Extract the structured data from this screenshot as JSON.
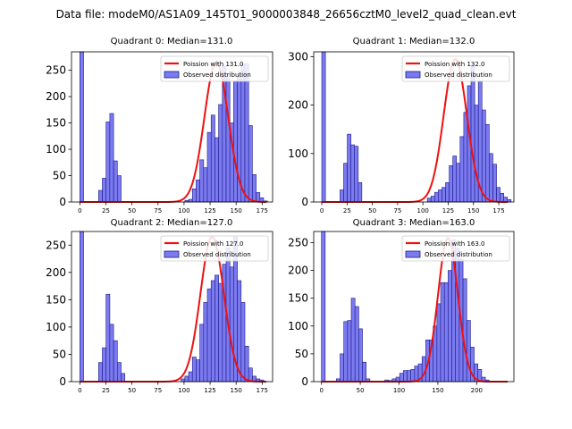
{
  "suptitle": "Data file: modeM0/AS1A09_145T01_9000003848_26656cztM0_level2_quad_clean.evt",
  "colors": {
    "bar_fill": "#7b7bef",
    "bar_edge": "#1a1a8c",
    "curve": "#ee1111",
    "axes": "#000000"
  },
  "chart_data": [
    {
      "type": "bar",
      "title": "Quadrant 0: Median=131.0",
      "legend": [
        "Poission with 131.0",
        "Observed distribution"
      ],
      "legend_loc": "upper right",
      "xlim": [
        -8,
        185
      ],
      "ylim": [
        0,
        285
      ],
      "xticks": [
        0,
        25,
        50,
        75,
        100,
        125,
        150,
        175
      ],
      "yticks": [
        0,
        50,
        100,
        150,
        200,
        250
      ],
      "bin_start": 0,
      "bin_width": 3.6,
      "values": [
        285,
        0,
        0,
        0,
        0,
        22,
        45,
        152,
        168,
        78,
        50,
        0,
        0,
        0,
        0,
        0,
        0,
        0,
        0,
        0,
        0,
        0,
        0,
        0,
        0,
        0,
        0,
        0,
        3,
        5,
        25,
        42,
        80,
        65,
        132,
        165,
        122,
        185,
        258,
        235,
        150,
        230,
        240,
        262,
        262,
        145,
        52,
        18,
        8,
        2,
        0
      ],
      "mu": 131.0,
      "peak": 265
    },
    {
      "type": "bar",
      "title": "Quadrant 1: Median=132.0",
      "legend": [
        "Poission with 132.0",
        "Observed distribution"
      ],
      "legend_loc": "upper right",
      "xlim": [
        -8,
        190
      ],
      "ylim": [
        0,
        310
      ],
      "xticks": [
        0,
        25,
        50,
        75,
        100,
        125,
        150,
        175
      ],
      "yticks": [
        0,
        100,
        200,
        300
      ],
      "bin_start": 0,
      "bin_width": 3.6,
      "values": [
        310,
        0,
        0,
        0,
        0,
        25,
        80,
        140,
        118,
        115,
        40,
        0,
        0,
        0,
        0,
        0,
        0,
        0,
        0,
        0,
        0,
        0,
        0,
        0,
        0,
        0,
        0,
        0,
        0,
        8,
        12,
        20,
        25,
        30,
        40,
        75,
        95,
        80,
        135,
        185,
        240,
        280,
        200,
        250,
        190,
        160,
        100,
        78,
        30,
        18,
        10,
        5,
        0
      ],
      "mu": 132.0,
      "peak": 295
    },
    {
      "type": "bar",
      "title": "Quadrant 2: Median=127.0",
      "legend": [
        "Poission with 127.0",
        "Observed distribution"
      ],
      "legend_loc": "upper right",
      "xlim": [
        -8,
        185
      ],
      "ylim": [
        0,
        275
      ],
      "xticks": [
        0,
        25,
        50,
        75,
        100,
        125,
        150,
        175
      ],
      "yticks": [
        0,
        50,
        100,
        150,
        200,
        250
      ],
      "bin_start": 0,
      "bin_width": 3.6,
      "values": [
        275,
        0,
        0,
        0,
        0,
        35,
        62,
        160,
        105,
        75,
        35,
        15,
        0,
        0,
        0,
        0,
        0,
        0,
        0,
        0,
        0,
        0,
        0,
        0,
        0,
        0,
        0,
        5,
        10,
        18,
        45,
        40,
        105,
        145,
        170,
        185,
        195,
        180,
        215,
        245,
        210,
        265,
        185,
        145,
        65,
        25,
        10,
        5,
        3,
        0
      ],
      "mu": 127.0,
      "peak": 265
    },
    {
      "type": "bar",
      "title": "Quadrant 3: Median=163.0",
      "legend": [
        "Poission with 163.0",
        "Observed distribution"
      ],
      "legend_loc": "upper right",
      "xlim": [
        -10,
        248
      ],
      "ylim": [
        0,
        270
      ],
      "xticks": [
        0,
        50,
        100,
        150,
        200
      ],
      "yticks": [
        0,
        50,
        100,
        150,
        200,
        250
      ],
      "bin_start": 0,
      "bin_width": 4.8,
      "values": [
        270,
        0,
        0,
        0,
        5,
        50,
        108,
        110,
        150,
        135,
        95,
        35,
        5,
        0,
        0,
        0,
        0,
        3,
        2,
        5,
        8,
        15,
        20,
        20,
        22,
        28,
        32,
        45,
        75,
        75,
        100,
        140,
        178,
        178,
        200,
        255,
        240,
        220,
        185,
        110,
        62,
        32,
        22,
        8,
        3,
        0,
        0,
        0,
        0,
        0
      ],
      "mu": 163.0,
      "peak": 258
    }
  ]
}
